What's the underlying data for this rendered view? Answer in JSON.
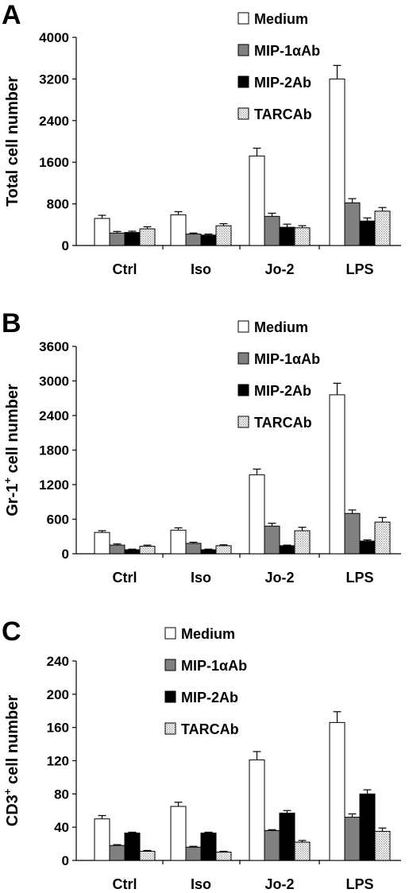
{
  "colors": {
    "medium": "#ffffff",
    "mip1": "#808080",
    "mip2": "#000000",
    "tarc": "#d9d9d9"
  },
  "chart_data": [
    {
      "panel": "A",
      "type": "bar",
      "ylabel": "Total cell number",
      "ylabel_sup": "",
      "ylabel_suffix": "",
      "ylim": [
        0,
        4000
      ],
      "yticks": [
        0,
        800,
        1600,
        2400,
        3200,
        4000
      ],
      "categories": [
        "Ctrl",
        "Iso",
        "Jo-2",
        "LPS"
      ],
      "legend": [
        "Medium",
        "MIP-1αAb",
        "MIP-2Ab",
        "TARCAb"
      ],
      "series": [
        {
          "name": "Medium",
          "values": [
            520,
            590,
            1720,
            3200
          ],
          "errors": [
            60,
            60,
            150,
            260
          ]
        },
        {
          "name": "MIP-1αAb",
          "values": [
            240,
            220,
            560,
            820
          ],
          "errors": [
            30,
            20,
            60,
            80
          ]
        },
        {
          "name": "MIP-2Ab",
          "values": [
            250,
            200,
            350,
            470
          ],
          "errors": [
            25,
            20,
            60,
            60
          ]
        },
        {
          "name": "TARCAb",
          "values": [
            320,
            380,
            340,
            660
          ],
          "errors": [
            40,
            40,
            40,
            70
          ]
        }
      ]
    },
    {
      "panel": "B",
      "type": "bar",
      "ylabel": "",
      "ylabel_prefix": "Gr-1",
      "ylabel_sup": "+",
      "ylabel_suffix": " cell number",
      "ylim": [
        0,
        3600
      ],
      "yticks": [
        0,
        600,
        1200,
        1800,
        2400,
        3000,
        3600
      ],
      "categories": [
        "Ctrl",
        "Iso",
        "Jo-2",
        "LPS"
      ],
      "legend": [
        "Medium",
        "MIP-1αAb",
        "MIP-2Ab",
        "TARCAb"
      ],
      "series": [
        {
          "name": "Medium",
          "values": [
            370,
            410,
            1370,
            2760
          ],
          "errors": [
            30,
            40,
            100,
            200
          ]
        },
        {
          "name": "MIP-1αAb",
          "values": [
            150,
            180,
            480,
            700
          ],
          "errors": [
            20,
            20,
            50,
            60
          ]
        },
        {
          "name": "MIP-2Ab",
          "values": [
            70,
            70,
            140,
            220
          ],
          "errors": [
            10,
            10,
            10,
            20
          ]
        },
        {
          "name": "TARCAb",
          "values": [
            130,
            140,
            400,
            550
          ],
          "errors": [
            20,
            15,
            60,
            80
          ]
        }
      ]
    },
    {
      "panel": "C",
      "type": "bar",
      "ylabel": "",
      "ylabel_prefix": "CD3",
      "ylabel_sup": "+",
      "ylabel_suffix": " cell number",
      "ylim": [
        0,
        240
      ],
      "yticks": [
        0,
        40,
        80,
        120,
        160,
        200,
        240
      ],
      "categories": [
        "Ctrl",
        "Iso",
        "Jo-2",
        "LPS"
      ],
      "legend": [
        "Medium",
        "MIP-1αAb",
        "MIP-2Ab",
        "TARCAb"
      ],
      "series": [
        {
          "name": "Medium",
          "values": [
            50,
            65,
            121,
            166
          ],
          "errors": [
            4,
            5,
            10,
            13
          ]
        },
        {
          "name": "MIP-1αAb",
          "values": [
            18,
            16,
            36,
            52
          ],
          "errors": [
            1,
            1,
            1,
            4
          ]
        },
        {
          "name": "MIP-2Ab",
          "values": [
            33,
            33,
            57,
            80
          ],
          "errors": [
            1,
            1,
            3,
            5
          ]
        },
        {
          "name": "TARCAb",
          "values": [
            11,
            10,
            22,
            35
          ],
          "errors": [
            1,
            1,
            2,
            4
          ]
        }
      ]
    }
  ]
}
